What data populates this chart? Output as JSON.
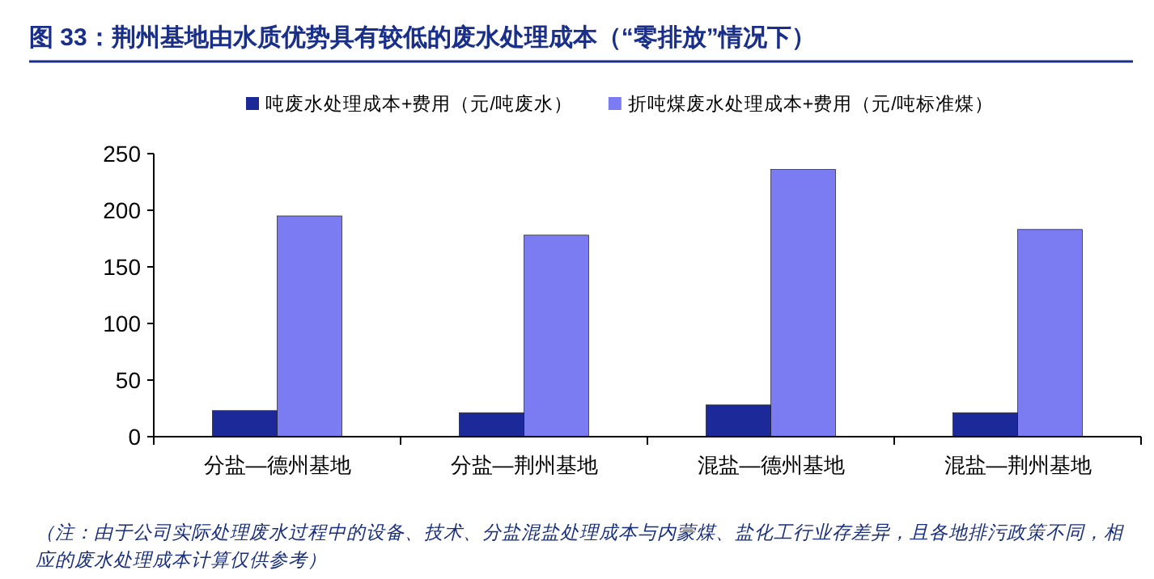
{
  "chart_data": {
    "type": "bar",
    "title": "图 33：荆州基地由水质优势具有较低的废水处理成本（“零排放”情况下）",
    "categories": [
      "分盐—德州基地",
      "分盐—荆州基地",
      "混盐—德州基地",
      "混盐—荆州基地"
    ],
    "series": [
      {
        "name": "吨废水处理成本+费用（元/吨废水）",
        "color": "#1c2a99",
        "values": [
          23,
          21,
          28,
          21
        ]
      },
      {
        "name": "折吨煤废水处理成本+费用（元/吨标准煤）",
        "color": "#7b7bf2",
        "values": [
          195,
          178,
          236,
          183
        ]
      }
    ],
    "ylim": [
      0,
      250
    ],
    "yticks": [
      0,
      50,
      100,
      150,
      200,
      250
    ],
    "grid": false,
    "legend": "top",
    "annotations": [
      "（注：由于公司实际处理废水过程中的设备、技术、分盐混盐处理成本与内蒙煤、盐化工行业存差异，且各地排污政策不同，相应的废水处理成本计算仅供参考）"
    ]
  }
}
